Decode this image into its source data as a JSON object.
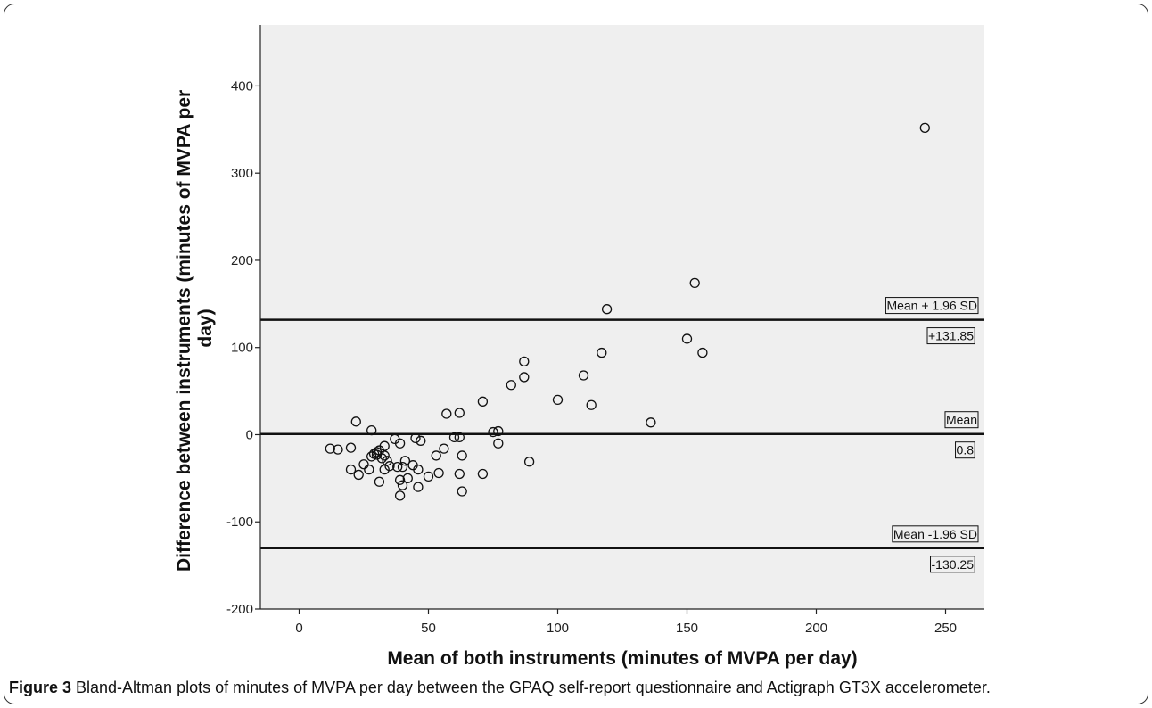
{
  "caption": {
    "figure_label": "Figure 3",
    "text": " Bland-Altman plots of minutes of MVPA per day between the GPAQ self-report questionnaire and Actigraph GT3X accelerometer."
  },
  "chart_data": {
    "type": "scatter",
    "title": "",
    "xlabel": "Mean of both instruments (minutes of MVPA per day)",
    "ylabel_lines": [
      "Difference between instruments (minutes of MVPA per",
      "day)"
    ],
    "xlim": [
      -15,
      265
    ],
    "ylim": [
      -200,
      470
    ],
    "xticks": [
      0,
      50,
      100,
      150,
      200,
      250
    ],
    "yticks": [
      -200,
      -100,
      0,
      100,
      200,
      300,
      400
    ],
    "grid": false,
    "background": "#efefef",
    "marker": "open-circle",
    "reference_lines": [
      {
        "value": 131.85,
        "label": "Mean + 1.96 SD",
        "value_label": "+131.85"
      },
      {
        "value": 0.8,
        "label": "Mean",
        "value_label": "0.8"
      },
      {
        "value": -130.25,
        "label": "Mean -1.96 SD",
        "value_label": "-130.25"
      }
    ],
    "points": [
      [
        12,
        -16
      ],
      [
        15,
        -17
      ],
      [
        20,
        -15
      ],
      [
        20,
        -40
      ],
      [
        22,
        15
      ],
      [
        23,
        -46
      ],
      [
        25,
        -34
      ],
      [
        27,
        -40
      ],
      [
        28,
        5
      ],
      [
        28,
        -25
      ],
      [
        29,
        -22
      ],
      [
        30,
        -23
      ],
      [
        30,
        -20
      ],
      [
        31,
        -18
      ],
      [
        31,
        -54
      ],
      [
        32,
        -27
      ],
      [
        33,
        -13
      ],
      [
        33,
        -24
      ],
      [
        33,
        -40
      ],
      [
        34,
        -30
      ],
      [
        35,
        -36
      ],
      [
        37,
        -5
      ],
      [
        38,
        -37
      ],
      [
        39,
        -10
      ],
      [
        39,
        -52
      ],
      [
        39,
        -70
      ],
      [
        40,
        -58
      ],
      [
        40,
        -37
      ],
      [
        41,
        -30
      ],
      [
        42,
        -50
      ],
      [
        44,
        -35
      ],
      [
        45,
        -4
      ],
      [
        46,
        -40
      ],
      [
        46,
        -60
      ],
      [
        47,
        -7
      ],
      [
        50,
        -48
      ],
      [
        53,
        -24
      ],
      [
        54,
        -44
      ],
      [
        56,
        -16
      ],
      [
        57,
        24
      ],
      [
        60,
        -3
      ],
      [
        62,
        25
      ],
      [
        62,
        -3
      ],
      [
        62,
        -45
      ],
      [
        63,
        -65
      ],
      [
        63,
        -24
      ],
      [
        71,
        38
      ],
      [
        71,
        -45
      ],
      [
        75,
        3
      ],
      [
        77,
        4
      ],
      [
        77,
        -10
      ],
      [
        82,
        57
      ],
      [
        87,
        84
      ],
      [
        87,
        66
      ],
      [
        89,
        -31
      ],
      [
        100,
        40
      ],
      [
        110,
        68
      ],
      [
        113,
        34
      ],
      [
        117,
        94
      ],
      [
        119,
        144
      ],
      [
        136,
        14
      ],
      [
        150,
        110
      ],
      [
        153,
        174
      ],
      [
        156,
        94
      ],
      [
        242,
        352
      ]
    ]
  }
}
